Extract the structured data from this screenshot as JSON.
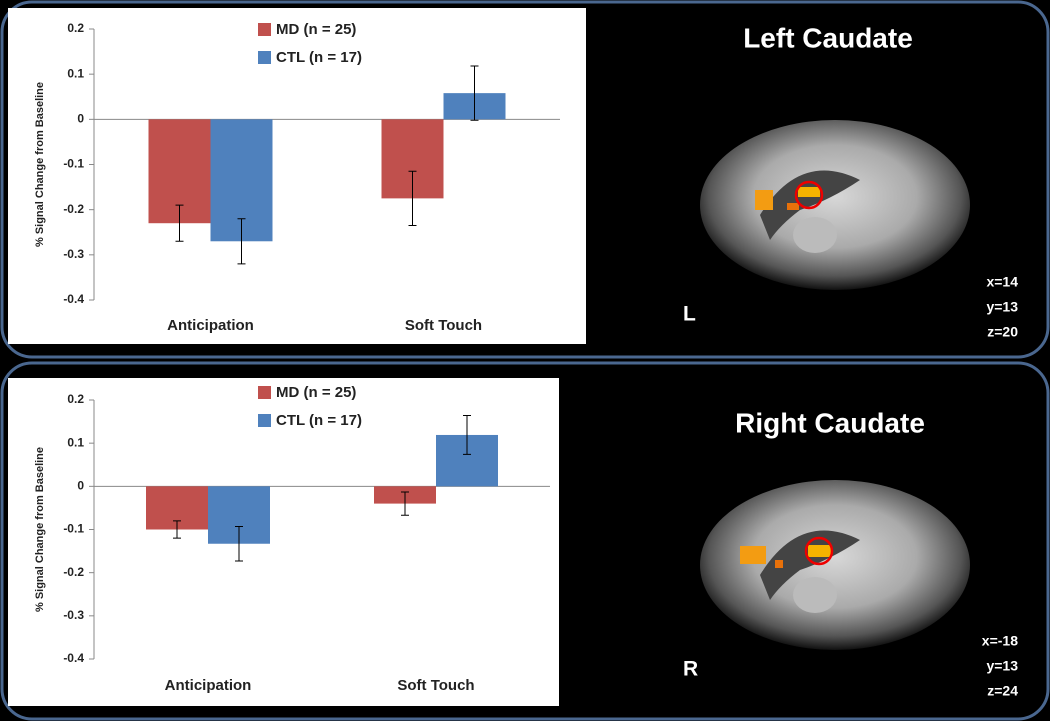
{
  "chart_data": [
    {
      "type": "bar",
      "ylabel": "% Signal Change from Baseline",
      "categories": [
        "Anticipation",
        "Soft Touch"
      ],
      "series": [
        {
          "name": "MD (n = 25)",
          "color": "#c0504d",
          "values": [
            -0.23,
            -0.175
          ],
          "errors": [
            0.04,
            0.06
          ]
        },
        {
          "name": "CTL (n = 17)",
          "color": "#4f81bd",
          "values": [
            -0.27,
            0.058
          ],
          "errors": [
            0.05,
            0.06
          ]
        }
      ],
      "ylim": [
        -0.4,
        0.2
      ],
      "yticks": [
        -0.4,
        -0.3,
        -0.2,
        -0.1,
        0,
        0.1,
        0.2
      ],
      "grid": false
    },
    {
      "type": "bar",
      "ylabel": "% Signal Change from Baseline",
      "categories": [
        "Anticipation",
        "Soft Touch"
      ],
      "series": [
        {
          "name": "MD (n = 25)",
          "color": "#c0504d",
          "values": [
            -0.1,
            -0.04
          ],
          "errors": [
            0.02,
            0.027
          ]
        },
        {
          "name": "CTL (n = 17)",
          "color": "#4f81bd",
          "values": [
            -0.133,
            0.119
          ],
          "errors": [
            0.04,
            0.045
          ]
        }
      ],
      "ylim": [
        -0.4,
        0.2
      ],
      "yticks": [
        -0.4,
        -0.3,
        -0.2,
        -0.1,
        0,
        0.1,
        0.2
      ],
      "grid": false
    }
  ],
  "panels": [
    {
      "title": "Left Caudate",
      "hemisphere": "L",
      "coordinates": [
        "x=14",
        "y=13",
        "z=20"
      ]
    },
    {
      "title": "Right Caudate",
      "hemisphere": "R",
      "coordinates": [
        "x=-18",
        "y=13",
        "z=24"
      ]
    }
  ]
}
